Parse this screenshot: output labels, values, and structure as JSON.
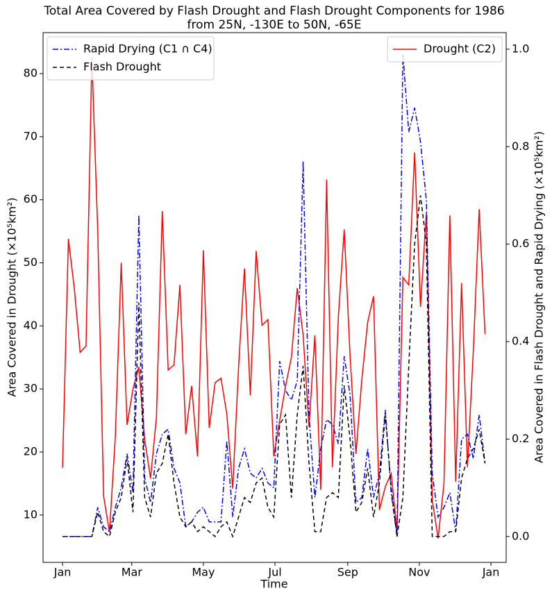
{
  "chart_data": {
    "type": "line",
    "title": [
      "Total Area Covered by Flash Drought and Flash Drought Components for 1986",
      "from 25N, -130E to 50N, -65E"
    ],
    "xlabel": "Time",
    "ylabel": "Area Covered in Drought (×10⁵km²)",
    "y2label": "Area Covered in Flash Drought and Rapid Drying (×10⁵km²)",
    "x": [
      0,
      5,
      10,
      15,
      20,
      25,
      30,
      35,
      40,
      45,
      50,
      55,
      60,
      65,
      70,
      75,
      80,
      85,
      90,
      95,
      100,
      105,
      110,
      115,
      120,
      125,
      130,
      135,
      140,
      145,
      150,
      155,
      160,
      165,
      170,
      175,
      180,
      185,
      190,
      195,
      200,
      205,
      210,
      215,
      220,
      225,
      230,
      235,
      240,
      245,
      250,
      255,
      260,
      265,
      270,
      275,
      280,
      285,
      290,
      295,
      300,
      305,
      310,
      315,
      320,
      325,
      330,
      335,
      340,
      345,
      350,
      355,
      360
    ],
    "xlim": [
      -16.6,
      378
    ],
    "xticks": [
      {
        "value": 0,
        "label": "Jan"
      },
      {
        "value": 59,
        "label": "Mar"
      },
      {
        "value": 120,
        "label": "May"
      },
      {
        "value": 181,
        "label": "Jul"
      },
      {
        "value": 243,
        "label": "Sep"
      },
      {
        "value": 304,
        "label": "Nov"
      },
      {
        "value": 365,
        "label": "Jan"
      }
    ],
    "ylim": [
      2.5,
      86.5
    ],
    "yticks": [
      10,
      20,
      30,
      40,
      50,
      60,
      70,
      80
    ],
    "y2lim": [
      -0.053,
      1.034
    ],
    "y2ticks": [
      {
        "value": 0,
        "label": "0.0"
      },
      0.2,
      0.4,
      0.6,
      0.8,
      {
        "value": 1,
        "label": "1.0"
      }
    ],
    "legend": "upper right",
    "legend2": "upper left",
    "series": [
      {
        "name": "Drought (C2)",
        "color": "#ff0000",
        "linestyle": "-",
        "axis": "y",
        "values": [
          17.5,
          53.8,
          46,
          35.8,
          36.8,
          82.5,
          55,
          13,
          7.3,
          22.5,
          50,
          24.3,
          30,
          33.5,
          22,
          15.8,
          25.5,
          58.2,
          33,
          33.8,
          46.5,
          22.8,
          30.5,
          19.3,
          52,
          23.8,
          31,
          31.7,
          26,
          14.2,
          33.5,
          49.1,
          29,
          51.9,
          40.1,
          41,
          19.3,
          25,
          30.4,
          35,
          46,
          38.5,
          24,
          38.5,
          14,
          63.2,
          17.6,
          41.4,
          55.3,
          35.2,
          19.7,
          31.5,
          40.6,
          44.7,
          10.8,
          14.5,
          16.6,
          7.5,
          47.7,
          46.5,
          67.5,
          43,
          58,
          12.4,
          6.3,
          15,
          57.5,
          15.3,
          46.8,
          17.6,
          36,
          58.5,
          38.7
        ]
      },
      {
        "name": "Rapid Drying (C1 ∩ C4)",
        "color": "#0000ff",
        "linestyle": "-.",
        "axis": "y2",
        "values": [
          0,
          0,
          0,
          0,
          0,
          0,
          0.06,
          0.02,
          0.01,
          0.06,
          0.1,
          0.17,
          0.09,
          0.66,
          0.12,
          0.07,
          0.17,
          0.21,
          0.22,
          0.14,
          0.11,
          0.02,
          0.03,
          0.05,
          0.06,
          0.03,
          0.03,
          0.03,
          0.196,
          0.04,
          0.14,
          0.18,
          0.13,
          0.12,
          0.14,
          0.11,
          0.1,
          0.36,
          0.3,
          0.28,
          0.32,
          0.77,
          0.25,
          0.08,
          0.18,
          0.24,
          0.23,
          0.19,
          0.37,
          0.29,
          0.07,
          0.08,
          0.18,
          0.08,
          0.13,
          0.26,
          0.09,
          0,
          0.99,
          0.83,
          0.88,
          0.81,
          0.69,
          0.13,
          0.04,
          0.06,
          0.09,
          0.01,
          0.2,
          0.21,
          0.16,
          0.25,
          0.15
        ]
      },
      {
        "name": "Flash Drought",
        "color": "#000000",
        "linestyle": "--",
        "axis": "y2",
        "values": [
          0,
          0,
          0,
          0,
          0,
          0,
          0.05,
          0.01,
          0,
          0.05,
          0.08,
          0.16,
          0.05,
          0.48,
          0.08,
          0.04,
          0.13,
          0.15,
          0.21,
          0.11,
          0.04,
          0.02,
          0.03,
          0.01,
          0.02,
          0.01,
          0,
          0.02,
          0.03,
          0,
          0.04,
          0.08,
          0.07,
          0.11,
          0.12,
          0.06,
          0.04,
          0.23,
          0.25,
          0.08,
          0.25,
          0.35,
          0.15,
          0.01,
          0.01,
          0.08,
          0.09,
          0.08,
          0.31,
          0.2,
          0.05,
          0.07,
          0.14,
          0.04,
          0.11,
          0.25,
          0.1,
          0,
          0.08,
          0.35,
          0.6,
          0.7,
          0.6,
          0,
          0,
          0,
          0.01,
          0.01,
          0.12,
          0.16,
          0.18,
          0.22,
          0.15
        ]
      }
    ]
  }
}
